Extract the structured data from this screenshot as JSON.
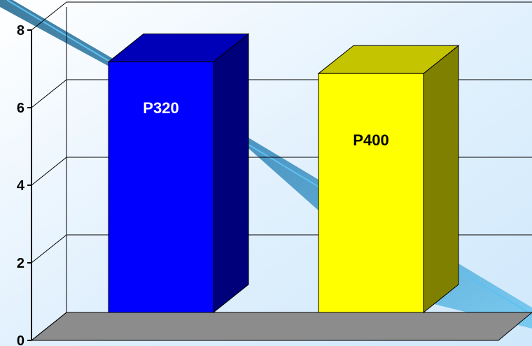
{
  "chart_data": {
    "type": "bar",
    "categories": [
      "P320",
      "P400"
    ],
    "values": [
      7.9,
      7.6
    ],
    "data_labels": [
      "P320",
      "P400"
    ],
    "title": "",
    "xlabel": "",
    "ylabel": "",
    "ylim": [
      0,
      8
    ],
    "yticks": [
      "0",
      "2",
      "4",
      "6",
      "8"
    ],
    "grid": true,
    "legend": "none",
    "style": "3d-column",
    "colors": {
      "P320": {
        "front": "#0000ff",
        "side": "#00007a",
        "top": "#0000b8",
        "label": "#ffffff"
      },
      "P400": {
        "front": "#ffff00",
        "side": "#808000",
        "top": "#c4c400",
        "label": "#000000"
      },
      "floor": "#8c8c8c",
      "background": "#eaf5ff",
      "gridline": "#000000",
      "decor_ribbon": "#3a8fc0",
      "decor_light": "#5ec0f0"
    }
  }
}
